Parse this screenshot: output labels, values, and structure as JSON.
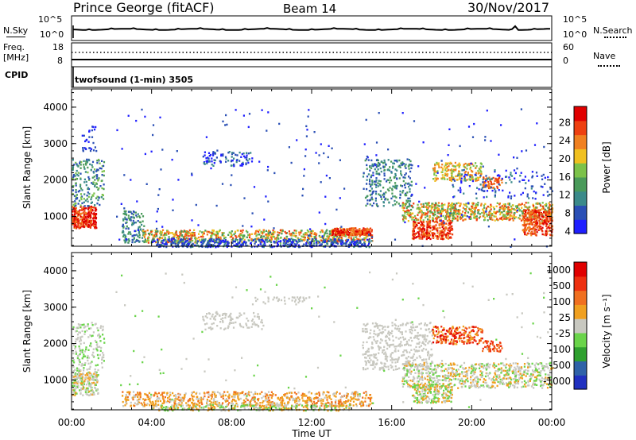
{
  "header": {
    "station": "Prince George (fitACF)",
    "beam": "Beam 14",
    "date": "30/Nov/2017"
  },
  "noise_panel": {
    "left_label": "N.Sky",
    "left_ticks": [
      "10^5",
      "10^0"
    ],
    "right_ticks": [
      "10^5",
      "10^0"
    ],
    "right_label": "N.Search"
  },
  "freq_panel": {
    "left_label_1": "Freq.",
    "left_label_2": "[MHz]",
    "left_ticks": [
      "18",
      "8"
    ],
    "right_ticks": [
      "60",
      "0"
    ],
    "right_label": "Nave"
  },
  "cpid": {
    "label": "CPID",
    "value": "twofsound (1-min) 3505"
  },
  "chart_data": [
    {
      "type": "heatmap",
      "title": "",
      "xlabel": "",
      "ylabel": "Slant Range [km]",
      "ylim": [
        180,
        4500
      ],
      "y_ticks": [
        "1000",
        "2000",
        "3000",
        "4000"
      ],
      "x_ticks": [
        "00:00",
        "04:00",
        "08:00",
        "12:00",
        "16:00",
        "20:00",
        "00:00"
      ],
      "colorbar_label": "Power [dB]",
      "colorbar_ticks": [
        "28",
        "24",
        "20",
        "16",
        "12",
        "8",
        "4"
      ],
      "colors": [
        "#1f1fff",
        "#2a4fb5",
        "#3b8a8a",
        "#4a9a5a",
        "#7cc24a",
        "#f0c020",
        "#f08020",
        "#ee4010",
        "#e00000"
      ]
    },
    {
      "type": "heatmap",
      "title": "",
      "xlabel": "Time UT",
      "ylabel": "Slant Range [km]",
      "ylim": [
        180,
        4500
      ],
      "y_ticks": [
        "1000",
        "2000",
        "3000",
        "4000"
      ],
      "x_ticks": [
        "00:00",
        "04:00",
        "08:00",
        "12:00",
        "16:00",
        "20:00",
        "00:00"
      ],
      "colorbar_label": "Velocity [m s⁻¹]",
      "colorbar_ticks": [
        "1000",
        "500",
        "100",
        "25",
        "-25",
        "-100",
        "-500",
        "-1000"
      ],
      "colors": [
        "#2030c0",
        "#2f62a8",
        "#2fa02f",
        "#6ad44a",
        "#c8c8c0",
        "#f0a020",
        "#f07020",
        "#ee3010",
        "#e00000"
      ]
    }
  ]
}
